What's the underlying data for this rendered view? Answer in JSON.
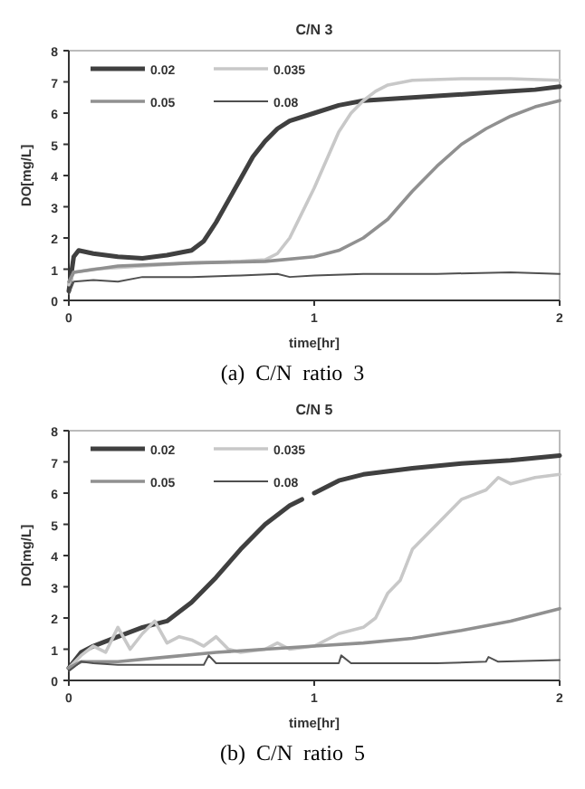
{
  "chart_data": [
    {
      "type": "line",
      "title": "C/N 3",
      "xlabel": "time[hr]",
      "ylabel": "DO[mg/L]",
      "xlim": [
        0,
        2
      ],
      "xticks": [
        0,
        1,
        2
      ],
      "ylim": [
        0,
        8
      ],
      "yticks": [
        0,
        1,
        2,
        3,
        4,
        5,
        6,
        7,
        8
      ],
      "grid": false,
      "legend": "top left",
      "line_style": "solid",
      "marker": "none",
      "annotations": [
        "(a)  C/N  ratio  3"
      ],
      "series": [
        {
          "name": "0.02",
          "color": "#404040",
          "x": [
            0,
            0.02,
            0.04,
            0.1,
            0.2,
            0.3,
            0.4,
            0.5,
            0.55,
            0.6,
            0.65,
            0.7,
            0.75,
            0.8,
            0.85,
            0.9,
            1,
            1.1,
            1.2,
            1.3,
            1.5,
            1.7,
            1.9,
            2
          ],
          "values": [
            0.3,
            1.4,
            1.6,
            1.5,
            1.4,
            1.35,
            1.45,
            1.6,
            1.9,
            2.5,
            3.2,
            3.9,
            4.6,
            5.1,
            5.5,
            5.75,
            6.0,
            6.25,
            6.4,
            6.45,
            6.55,
            6.65,
            6.75,
            6.85
          ]
        },
        {
          "name": "0.035",
          "color": "#c8c8c8",
          "x": [
            0,
            0.02,
            0.1,
            0.3,
            0.5,
            0.7,
            0.8,
            0.85,
            0.9,
            0.95,
            1.0,
            1.05,
            1.1,
            1.15,
            1.2,
            1.25,
            1.3,
            1.4,
            1.6,
            1.8,
            2
          ],
          "values": [
            0.5,
            0.9,
            1.0,
            1.1,
            1.2,
            1.25,
            1.3,
            1.5,
            2.0,
            2.8,
            3.6,
            4.5,
            5.4,
            6.0,
            6.4,
            6.7,
            6.9,
            7.05,
            7.1,
            7.1,
            7.05
          ]
        },
        {
          "name": "0.05",
          "color": "#909090",
          "x": [
            0,
            0.02,
            0.2,
            0.5,
            0.8,
            1.0,
            1.1,
            1.2,
            1.3,
            1.4,
            1.5,
            1.6,
            1.7,
            1.8,
            1.9,
            2
          ],
          "values": [
            0.6,
            0.9,
            1.1,
            1.2,
            1.25,
            1.4,
            1.6,
            2.0,
            2.6,
            3.5,
            4.3,
            5.0,
            5.5,
            5.9,
            6.2,
            6.4
          ]
        },
        {
          "name": "0.08",
          "color": "#505050",
          "x": [
            0,
            0.02,
            0.1,
            0.2,
            0.3,
            0.5,
            0.7,
            0.85,
            0.9,
            1.0,
            1.2,
            1.5,
            1.8,
            2
          ],
          "values": [
            0.2,
            0.6,
            0.65,
            0.6,
            0.75,
            0.75,
            0.8,
            0.85,
            0.75,
            0.8,
            0.85,
            0.85,
            0.9,
            0.85
          ]
        }
      ]
    },
    {
      "type": "line",
      "title": "C/N 5",
      "xlabel": "time[hr]",
      "ylabel": "DO[mg/L]",
      "xlim": [
        0,
        2
      ],
      "xticks": [
        0,
        1,
        2
      ],
      "ylim": [
        0,
        8
      ],
      "yticks": [
        0,
        1,
        2,
        3,
        4,
        5,
        6,
        7,
        8
      ],
      "grid": false,
      "legend": "top left",
      "line_style": "solid",
      "marker": "none",
      "annotations": [
        "(b)  C/N  ratio  5"
      ],
      "series": [
        {
          "name": "0.02",
          "color": "#404040",
          "x": [
            0,
            0.05,
            0.1,
            0.2,
            0.3,
            0.4,
            0.5,
            0.6,
            0.7,
            0.8,
            0.9,
            0.95,
            0.97,
            1.0,
            1.1,
            1.2,
            1.4,
            1.6,
            1.8,
            2
          ],
          "values": [
            0.4,
            0.9,
            1.1,
            1.4,
            1.7,
            1.9,
            2.5,
            3.3,
            4.2,
            5.0,
            5.6,
            5.8,
            null,
            6.0,
            6.4,
            6.6,
            6.8,
            6.95,
            7.05,
            7.2
          ]
        },
        {
          "name": "0.035",
          "color": "#c8c8c8",
          "x": [
            0,
            0.05,
            0.1,
            0.15,
            0.2,
            0.25,
            0.3,
            0.35,
            0.4,
            0.45,
            0.5,
            0.55,
            0.6,
            0.65,
            0.7,
            0.8,
            0.85,
            0.9,
            1.0,
            1.1,
            1.2,
            1.25,
            1.3,
            1.35,
            1.4,
            1.5,
            1.6,
            1.7,
            1.75,
            1.8,
            1.9,
            2
          ],
          "values": [
            0.4,
            0.8,
            1.1,
            0.9,
            1.7,
            1.0,
            1.5,
            1.9,
            1.2,
            1.4,
            1.3,
            1.1,
            1.4,
            1.0,
            0.9,
            1.0,
            1.2,
            1.0,
            1.1,
            1.5,
            1.7,
            2.0,
            2.8,
            3.2,
            4.2,
            5.0,
            5.8,
            6.1,
            6.5,
            6.3,
            6.5,
            6.6
          ]
        },
        {
          "name": "0.05",
          "color": "#909090",
          "x": [
            0,
            0.05,
            0.2,
            0.4,
            0.6,
            0.8,
            1.0,
            1.2,
            1.4,
            1.6,
            1.8,
            2
          ],
          "values": [
            0.4,
            0.6,
            0.6,
            0.75,
            0.9,
            1.0,
            1.1,
            1.2,
            1.35,
            1.6,
            1.9,
            2.3
          ]
        },
        {
          "name": "0.08",
          "color": "#505050",
          "x": [
            0,
            0.05,
            0.1,
            0.2,
            0.4,
            0.55,
            0.57,
            0.6,
            0.8,
            1.1,
            1.11,
            1.15,
            1.5,
            1.7,
            1.71,
            1.75,
            2
          ],
          "values": [
            0.3,
            0.6,
            0.55,
            0.5,
            0.5,
            0.5,
            0.8,
            0.55,
            0.55,
            0.55,
            0.8,
            0.55,
            0.55,
            0.6,
            0.75,
            0.6,
            0.65
          ]
        }
      ]
    }
  ]
}
